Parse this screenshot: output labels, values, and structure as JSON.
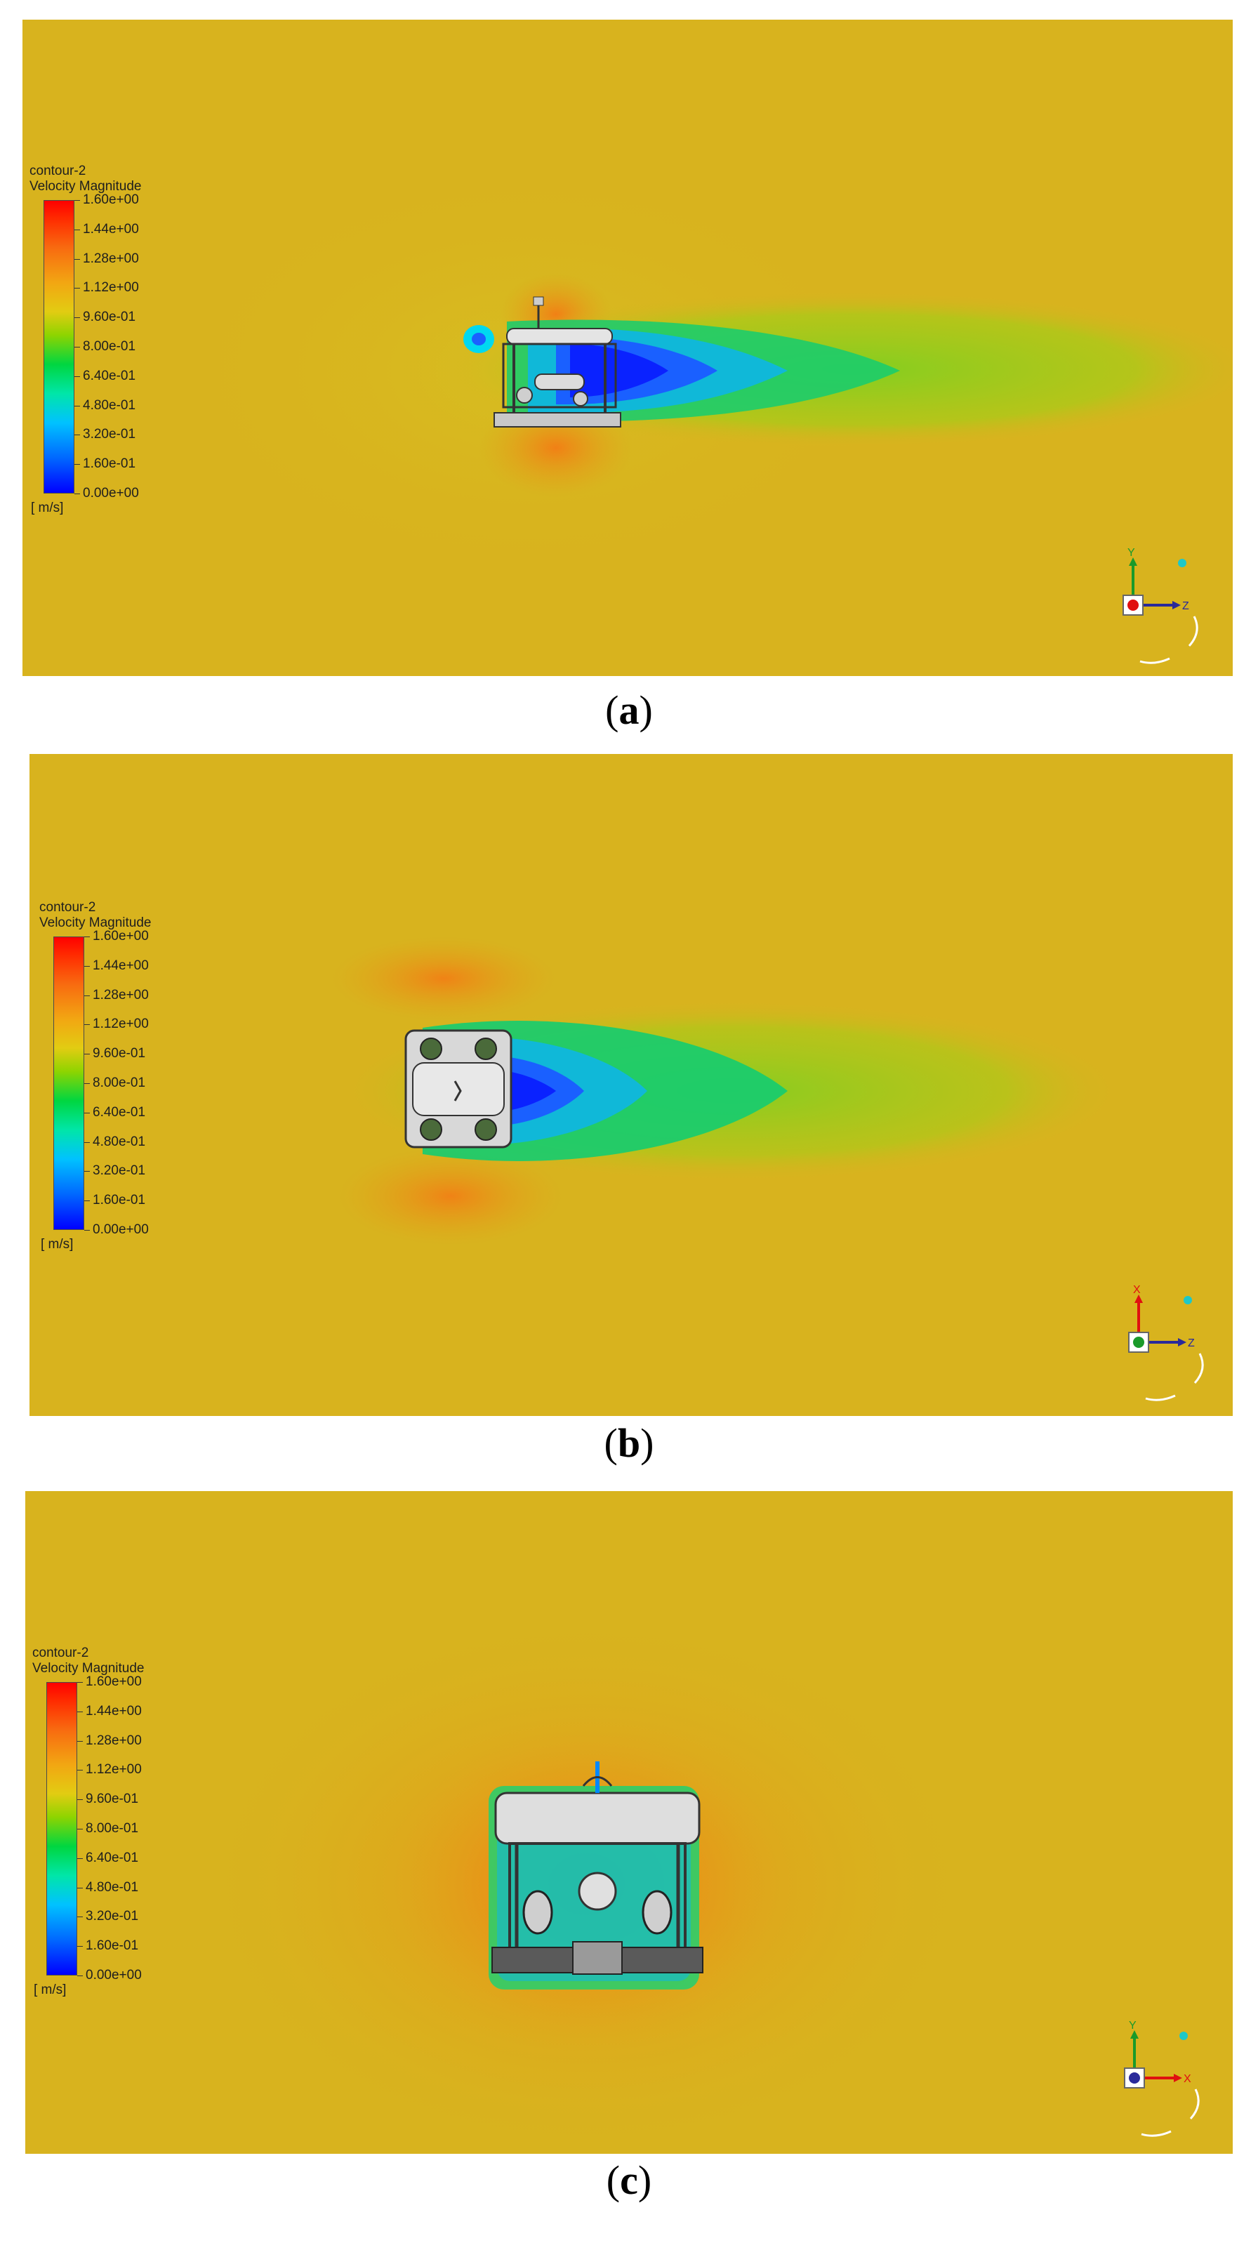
{
  "panels": [
    {
      "id": "a",
      "caption_letter": "a",
      "legend_title_1": "contour-2",
      "legend_title_2": "Velocity Magnitude",
      "legend_unit": "[ m/s]",
      "triad_labels": {
        "up": "Y",
        "right": "Z"
      },
      "view": "side"
    },
    {
      "id": "b",
      "caption_letter": "b",
      "legend_title_1": "contour-2",
      "legend_title_2": "Velocity Magnitude",
      "legend_unit": "[ m/s]",
      "triad_labels": {
        "up": "X",
        "right": "Z"
      },
      "view": "top"
    },
    {
      "id": "c",
      "caption_letter": "c",
      "legend_title_1": "contour-2",
      "legend_title_2": "Velocity Magnitude",
      "legend_unit": "[ m/s]",
      "triad_labels": {
        "up": "Y",
        "right": "X"
      },
      "view": "front"
    }
  ],
  "legend_ticks": [
    "1.60e+00",
    "1.44e+00",
    "1.28e+00",
    "1.12e+00",
    "9.60e-01",
    "8.00e-01",
    "6.40e-01",
    "4.80e-01",
    "3.20e-01",
    "1.60e-01",
    "0.00e+00"
  ],
  "colors": {
    "background_flow": "#d8b31e",
    "wake_low": "#1a3cff",
    "wake_mid": "#00c8a0",
    "wake_outer": "#7fd020",
    "high_velocity": "#f07818",
    "vehicle": "#d8d8d8"
  }
}
